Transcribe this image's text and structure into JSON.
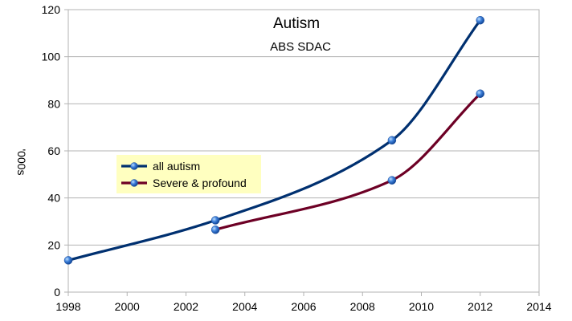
{
  "chart_data": {
    "type": "line",
    "title": "Autism",
    "subtitle": "ABS SDAC",
    "xlabel": "",
    "ylabel": "'000s",
    "xlim": [
      1998,
      2014
    ],
    "ylim": [
      0,
      120
    ],
    "x_ticks": [
      1998,
      2000,
      2002,
      2004,
      2006,
      2008,
      2010,
      2012,
      2014
    ],
    "y_ticks": [
      0,
      20,
      40,
      60,
      80,
      100,
      120
    ],
    "grid": true,
    "smooth": true,
    "legend_position": "left",
    "legend_background": "#ffffc0",
    "marker_color": "#3d7fd9",
    "series": [
      {
        "name": "all autism",
        "color": "#003070",
        "points": [
          [
            1998,
            13.5
          ],
          [
            2003,
            30.5
          ],
          [
            2009,
            64.5
          ],
          [
            2012,
            115.5
          ]
        ]
      },
      {
        "name": "Severe & profound",
        "color": "#6d0025",
        "points": [
          [
            2003,
            26.5
          ],
          [
            2009,
            47.5
          ],
          [
            2012,
            84.3
          ]
        ]
      }
    ]
  }
}
